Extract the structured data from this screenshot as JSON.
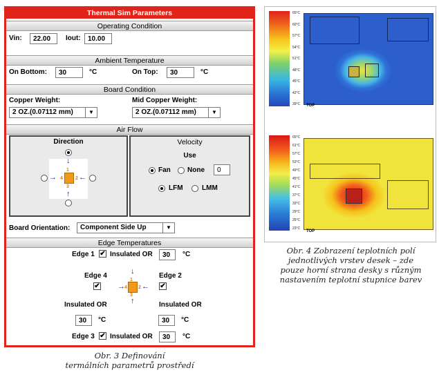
{
  "dialog": {
    "title": "Thermal Sim Parameters",
    "operating": {
      "header": "Operating Condition",
      "vin_label": "Vin:",
      "vin_value": "22.00",
      "iout_label": "Iout:",
      "iout_value": "10.00"
    },
    "ambient": {
      "header": "Ambient Temperature",
      "bottom_label": "On Bottom:",
      "bottom_value": "30",
      "unit1": "°C",
      "top_label": "On Top:",
      "top_value": "30",
      "unit2": "°C"
    },
    "board": {
      "header": "Board Condition",
      "copper_label": "Copper Weight:",
      "copper_value": "2 OZ.(0.07112 mm)",
      "mid_label": "Mid Copper Weight:",
      "mid_value": "2 OZ.(0.07112 mm)"
    },
    "airflow": {
      "header": "Air Flow",
      "direction_title": "Direction",
      "velocity_title": "Velocity",
      "use_label": "Use",
      "fan_label": "Fan",
      "none_label": "None",
      "velocity_value": "0",
      "lfm_label": "LFM",
      "lmm_label": "LMM",
      "edge_numbers": [
        "1",
        "2",
        "3",
        "4"
      ]
    },
    "orientation": {
      "label": "Board Orientation:",
      "value": "Component Side Up"
    },
    "edges": {
      "header": "Edge Temperatures",
      "edge1_label": "Edge 1",
      "edge2_label": "Edge 2",
      "edge3_label": "Edge 3",
      "edge4_label": "Edge 4",
      "insulated_or": "Insulated OR",
      "edge1_value": "30",
      "edge2_value": "30",
      "edge3_value": "30",
      "edge4_value": "30",
      "unit": "°C",
      "check_mark": "✔"
    }
  },
  "captions": {
    "left_line1": "Obr. 3  Definování",
    "left_line2": "termálních parametrů prostředí",
    "right_line1": "Obr. 4  Zobrazení teplotních polí",
    "right_line2": "jednotlivých vrstev desek – zde",
    "right_line3": "pouze horní strana desky s různým",
    "right_line4": "nastavením teplotní stupnice barev"
  },
  "figure": {
    "top_scale": [
      "65°C",
      "60°C",
      "57°C",
      "54°C",
      "51°C",
      "48°C",
      "45°C",
      "42°C",
      "39°C"
    ],
    "bottom_scale": [
      "65°C",
      "61°C",
      "57°C",
      "53°C",
      "49°C",
      "45°C",
      "41°C",
      "37°C",
      "33°C",
      "29°C",
      "25°C",
      "23°C"
    ],
    "label_top": "TOP",
    "label_bottom": "TOP"
  }
}
